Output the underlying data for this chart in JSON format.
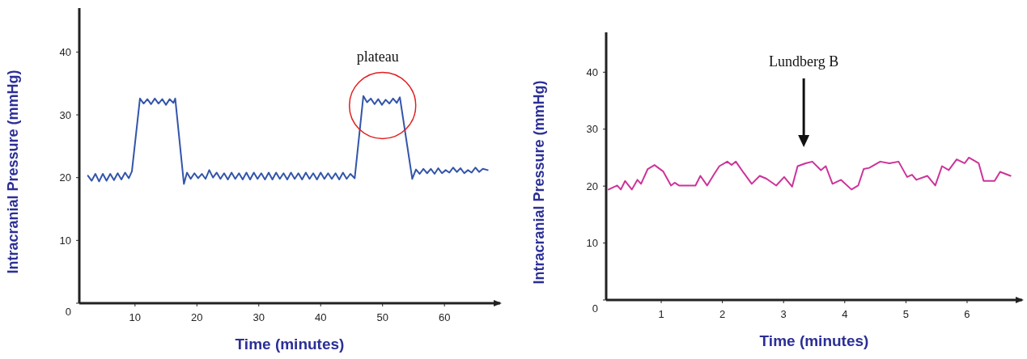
{
  "chart_data": [
    {
      "type": "line",
      "xlabel": "Time (minutes)",
      "ylabel": "Intracranial Pressure (mmHg)",
      "xlim": [
        1,
        69
      ],
      "ylim": [
        0,
        47
      ],
      "xticks": [
        10,
        20,
        30,
        40,
        50,
        60
      ],
      "yticks": [
        0,
        10,
        20,
        30,
        40
      ],
      "grid": false,
      "annotations": [
        {
          "text": "plateau",
          "x": 50,
          "y": 32
        }
      ],
      "series": [
        {
          "color": "#3355aa",
          "x": [
            2.4,
            3.0,
            3.6,
            4.2,
            4.8,
            5.4,
            6.0,
            6.6,
            7.2,
            7.8,
            8.4,
            9.0,
            9.5,
            10.8,
            11.4,
            12.0,
            12.6,
            13.2,
            13.8,
            14.4,
            15.0,
            15.6,
            16.2,
            16.5,
            17.9,
            18.4,
            19.0,
            19.6,
            20.2,
            20.8,
            21.4,
            22.0,
            22.6,
            23.2,
            23.8,
            24.4,
            25.0,
            25.6,
            26.2,
            26.8,
            27.4,
            28.0,
            28.6,
            29.2,
            29.8,
            30.4,
            31.0,
            31.6,
            32.2,
            32.8,
            33.4,
            34.0,
            34.6,
            35.2,
            35.8,
            36.4,
            37.0,
            37.6,
            38.2,
            38.8,
            39.4,
            40.0,
            40.6,
            41.2,
            41.8,
            42.4,
            43.0,
            43.6,
            44.2,
            44.8,
            45.5,
            46.9,
            47.5,
            48.1,
            48.7,
            49.3,
            49.9,
            50.5,
            51.1,
            51.7,
            52.3,
            52.8,
            54.8,
            55.4,
            56.0,
            56.6,
            57.2,
            57.8,
            58.4,
            59.0,
            59.6,
            60.2,
            60.8,
            61.4,
            62.0,
            62.6,
            63.2,
            63.8,
            64.4,
            65.0,
            65.6,
            66.2,
            67.0
          ],
          "values": [
            20.3,
            19.5,
            20.6,
            19.4,
            20.6,
            19.5,
            20.6,
            19.6,
            20.7,
            19.7,
            20.8,
            19.9,
            21.0,
            32.6,
            31.8,
            32.5,
            31.7,
            32.6,
            31.8,
            32.5,
            31.6,
            32.5,
            31.9,
            32.6,
            19.0,
            20.8,
            19.8,
            20.7,
            19.9,
            20.6,
            19.8,
            21.2,
            20.0,
            20.8,
            19.8,
            20.7,
            19.7,
            20.8,
            19.8,
            20.7,
            19.7,
            20.8,
            19.7,
            20.8,
            19.8,
            20.7,
            19.7,
            20.8,
            19.7,
            20.8,
            19.8,
            20.7,
            19.7,
            20.8,
            19.8,
            20.7,
            19.7,
            20.8,
            19.8,
            20.7,
            19.7,
            20.8,
            19.8,
            20.7,
            19.8,
            20.7,
            19.7,
            20.8,
            19.8,
            20.6,
            19.9,
            33.0,
            32.0,
            32.6,
            31.7,
            32.5,
            31.6,
            32.4,
            31.8,
            32.6,
            31.9,
            32.8,
            19.8,
            21.3,
            20.6,
            21.4,
            20.7,
            21.4,
            20.6,
            21.5,
            20.7,
            21.2,
            20.8,
            21.6,
            20.9,
            21.5,
            20.7,
            21.2,
            20.8,
            21.6,
            20.9,
            21.4,
            21.2
          ]
        }
      ]
    },
    {
      "type": "line",
      "xlabel": "Time (minutes)",
      "ylabel": "Intracranial Pressure (mmHg)",
      "xlim": [
        0.1,
        6.9
      ],
      "ylim": [
        0,
        47
      ],
      "xticks": [
        1,
        2,
        3,
        4,
        5,
        6
      ],
      "yticks": [
        0,
        10,
        20,
        30,
        40
      ],
      "grid": false,
      "annotations": [
        "Lundberg B"
      ],
      "series": [
        {
          "color": "#cc3399",
          "x": [
            0.14,
            0.28,
            0.34,
            0.41,
            0.52,
            0.61,
            0.67,
            0.78,
            0.89,
            1.03,
            1.16,
            1.22,
            1.29,
            1.56,
            1.64,
            1.75,
            1.86,
            1.95,
            2.08,
            2.15,
            2.22,
            2.35,
            2.48,
            2.61,
            2.72,
            2.88,
            3.01,
            3.14,
            3.23,
            3.36,
            3.47,
            3.61,
            3.69,
            3.8,
            3.94,
            4.11,
            4.22,
            4.31,
            4.4,
            4.58,
            4.73,
            4.88,
            5.02,
            5.1,
            5.17,
            5.35,
            5.48,
            5.59,
            5.7,
            5.83,
            5.96,
            6.03,
            6.19,
            6.27,
            6.45,
            6.54,
            6.71
          ],
          "values": [
            19.4,
            20.1,
            19.4,
            20.9,
            19.4,
            21.1,
            20.4,
            23.0,
            23.7,
            22.6,
            20.1,
            20.6,
            20.1,
            20.1,
            21.8,
            20.1,
            22.0,
            23.5,
            24.3,
            23.7,
            24.3,
            22.3,
            20.4,
            21.8,
            21.3,
            20.1,
            21.6,
            19.9,
            23.5,
            24.0,
            24.3,
            22.8,
            23.5,
            20.4,
            21.1,
            19.4,
            20.1,
            23.0,
            23.2,
            24.3,
            24.0,
            24.3,
            21.6,
            22.0,
            21.1,
            21.8,
            20.1,
            23.5,
            22.8,
            24.7,
            24.0,
            25.0,
            24.0,
            20.9,
            20.9,
            22.5,
            21.8
          ]
        }
      ]
    }
  ]
}
